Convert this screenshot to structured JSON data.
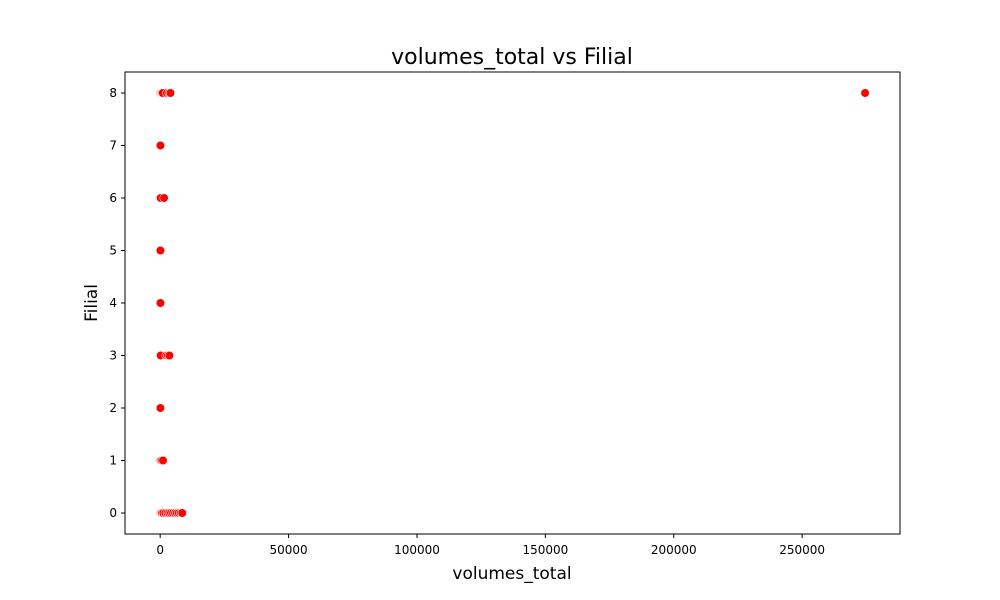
{
  "chart_data": {
    "type": "scatter",
    "title": "volumes_total vs Filial",
    "xlabel": "volumes_total",
    "ylabel": "Filial",
    "xlim": [
      -13700,
      288100
    ],
    "ylim": [
      -0.4,
      8.4
    ],
    "xticks": [
      0,
      50000,
      100000,
      150000,
      200000,
      250000
    ],
    "yticks": [
      0,
      1,
      2,
      3,
      4,
      5,
      6,
      7,
      8
    ],
    "grid": false,
    "legend": "none",
    "marker_color": "#ff0000",
    "marker_edge": "#ffffff",
    "points": [
      {
        "x": 0,
        "y": 8
      },
      {
        "x": 150,
        "y": 8
      },
      {
        "x": 400,
        "y": 8
      },
      {
        "x": 700,
        "y": 8
      },
      {
        "x": 1000,
        "y": 8
      },
      {
        "x": 2600,
        "y": 8
      },
      {
        "x": 3500,
        "y": 8
      },
      {
        "x": 4000,
        "y": 8
      },
      {
        "x": 274500,
        "y": 8
      },
      {
        "x": 0,
        "y": 7
      },
      {
        "x": 100,
        "y": 7
      },
      {
        "x": 0,
        "y": 6
      },
      {
        "x": 200,
        "y": 6
      },
      {
        "x": 1500,
        "y": 6
      },
      {
        "x": 0,
        "y": 5
      },
      {
        "x": 100,
        "y": 5
      },
      {
        "x": 0,
        "y": 4
      },
      {
        "x": 100,
        "y": 4
      },
      {
        "x": 0,
        "y": 3
      },
      {
        "x": 200,
        "y": 3
      },
      {
        "x": 2300,
        "y": 3
      },
      {
        "x": 3000,
        "y": 3
      },
      {
        "x": 3600,
        "y": 3
      },
      {
        "x": 0,
        "y": 2
      },
      {
        "x": 100,
        "y": 2
      },
      {
        "x": 0,
        "y": 1
      },
      {
        "x": 200,
        "y": 1
      },
      {
        "x": 600,
        "y": 1
      },
      {
        "x": 1100,
        "y": 1
      },
      {
        "x": 0,
        "y": 0
      },
      {
        "x": 200,
        "y": 0
      },
      {
        "x": 400,
        "y": 0
      },
      {
        "x": 700,
        "y": 0
      },
      {
        "x": 1200,
        "y": 0
      },
      {
        "x": 2000,
        "y": 0
      },
      {
        "x": 2800,
        "y": 0
      },
      {
        "x": 3500,
        "y": 0
      },
      {
        "x": 4200,
        "y": 0
      },
      {
        "x": 5000,
        "y": 0
      },
      {
        "x": 5800,
        "y": 0
      },
      {
        "x": 6500,
        "y": 0
      },
      {
        "x": 7200,
        "y": 0
      },
      {
        "x": 8000,
        "y": 0
      },
      {
        "x": 8600,
        "y": 0
      }
    ]
  }
}
